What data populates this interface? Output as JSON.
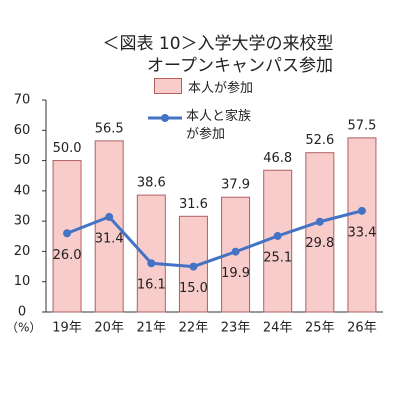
{
  "chart_data": {
    "type": "bar_line",
    "title": [
      "＜図表 10＞入学大学の来校型",
      "オープンキャンパス参加"
    ],
    "y_unit": "（%）",
    "categories": [
      "19年",
      "20年",
      "21年",
      "22年",
      "23年",
      "24年",
      "25年",
      "26年"
    ],
    "series": [
      {
        "name": "本人が参加",
        "kind": "bar",
        "color": "#f9cccc",
        "stroke": "#b06060",
        "values": [
          50,
          56.5,
          38.6,
          31.6,
          37.9,
          46.8,
          52.6,
          57.5
        ],
        "value_labels": [
          "50.0",
          "56.5",
          "38.6",
          "31.6",
          "37.9",
          "46.8",
          "52.6",
          "57.5"
        ]
      },
      {
        "name": "本人と家族が参加",
        "kind": "line",
        "color": "#4472c4",
        "values": [
          26,
          31.4,
          16.1,
          15,
          19.9,
          25.1,
          29.8,
          33.4
        ],
        "value_labels": [
          "26.0",
          "31.4",
          "16.1",
          "15.0",
          "19.9",
          "25.1",
          "29.8",
          "33.4"
        ]
      }
    ],
    "ylim": [
      0,
      70
    ],
    "yticks": [
      0,
      10,
      20,
      30,
      40,
      50,
      60,
      70
    ],
    "grid": false
  }
}
